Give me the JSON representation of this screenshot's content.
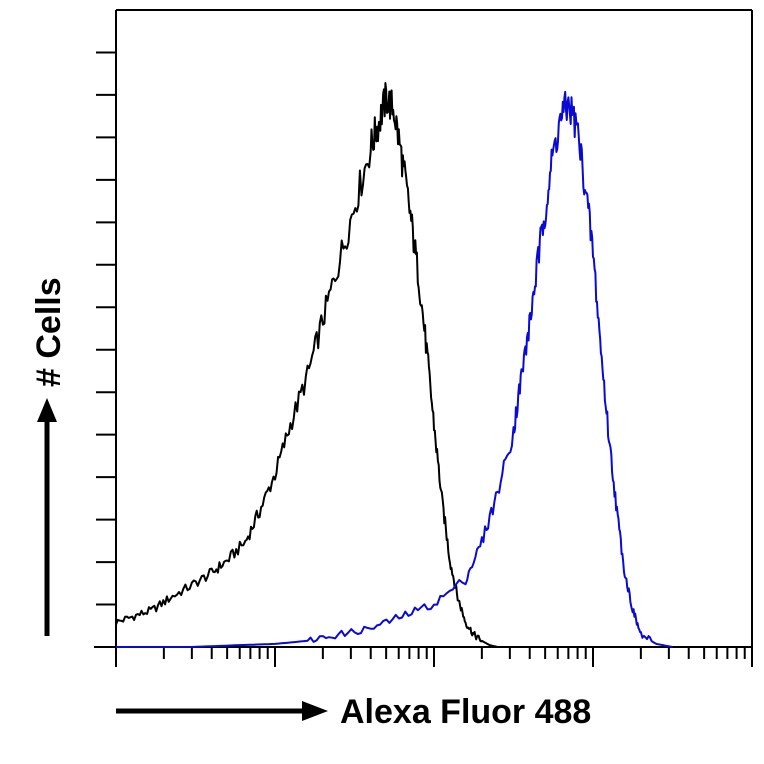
{
  "chart_data": {
    "type": "line",
    "title": "",
    "xlabel": "Alexa Fluor 488",
    "ylabel": "# Cells",
    "x_scale": "log",
    "xlim": [
      1,
      10000
    ],
    "ylim": [
      0,
      100
    ],
    "grid": false,
    "legend": "none",
    "series": [
      {
        "color": "#000000",
        "x": [
          1,
          1.3,
          1.7,
          2.2,
          3,
          4,
          5,
          6.5,
          8,
          10,
          12.5,
          16,
          20,
          25,
          32,
          40,
          45,
          50,
          56,
          63,
          71,
          80,
          90,
          100,
          112,
          126,
          141,
          158,
          178,
          200,
          224,
          251
        ],
        "y": [
          4,
          5,
          6,
          8,
          10,
          12,
          14,
          17,
          22,
          28,
          36,
          44,
          53,
          62,
          72,
          81,
          85,
          89,
          87,
          79,
          70,
          60,
          48,
          36,
          24,
          14,
          8,
          4,
          2,
          1,
          0.3,
          0
        ]
      },
      {
        "color": "#0a0ad4",
        "x": [
          1,
          3,
          6,
          10,
          16,
          25,
          40,
          63,
          100,
          158,
          200,
          251,
          316,
          355,
          398,
          447,
          501,
          562,
          631,
          708,
          794,
          891,
          1000,
          1122,
          1259,
          1413,
          1585,
          1778,
          2000,
          2500,
          3162
        ],
        "y": [
          0,
          0,
          0.3,
          0.5,
          1,
          2,
          3,
          5,
          7,
          11,
          17,
          25,
          35,
          44,
          52,
          62,
          71,
          80,
          86,
          88,
          84,
          75,
          64,
          48,
          34,
          22,
          12,
          6,
          2,
          0.5,
          0
        ]
      }
    ],
    "x_major_ticks": [
      1,
      10,
      100,
      1000,
      10000
    ],
    "y_tick_count": 15
  }
}
